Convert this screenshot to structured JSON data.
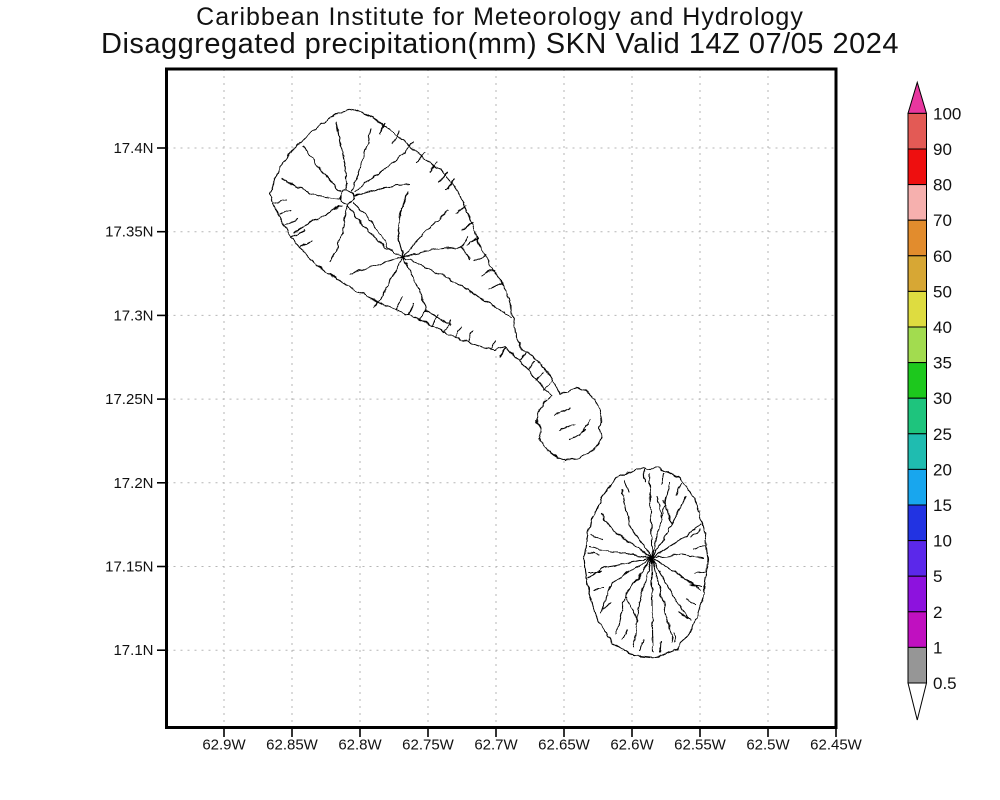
{
  "header": {
    "title": "Caribbean Institute for Meteorology and Hydrology",
    "subtitle": "Disaggregated precipitation(mm) SKN Valid 14Z 07/05 2024"
  },
  "chart_data": {
    "type": "map",
    "region_code": "SKN",
    "variable": "Disaggregated precipitation(mm)",
    "valid_time": "14Z 07/05 2024",
    "lat_ticks": [
      "17.4N",
      "17.35N",
      "17.3N",
      "17.25N",
      "17.2N",
      "17.15N",
      "17.1N"
    ],
    "lon_ticks": [
      "62.9W",
      "62.85W",
      "62.8W",
      "62.75W",
      "62.7W",
      "62.65W",
      "62.6W",
      "62.55W",
      "62.5W",
      "62.45W"
    ],
    "grid": "dashed gray gridlines at every tick",
    "colorbar": {
      "orientation": "vertical",
      "position": "right",
      "tick_labels": [
        "100",
        "90",
        "80",
        "70",
        "60",
        "50",
        "40",
        "35",
        "30",
        "25",
        "20",
        "15",
        "10",
        "5",
        "2",
        "1",
        "0.5"
      ],
      "segment_colors_top_to_bottom": [
        "#e35a55",
        "#ee0f0f",
        "#f6b0ae",
        "#e28c2d",
        "#d7a734",
        "#dedc40",
        "#a2dc4f",
        "#1dc81d",
        "#1ec47d",
        "#1fbcb0",
        "#18a6ee",
        "#2233e2",
        "#5b28ea",
        "#8d12de",
        "#c010c0",
        "#969696"
      ],
      "over_arrow_color": "#e8379f",
      "under_arrow_color": "#ffffff",
      "outline_color": "#000000"
    },
    "map_content": "two island watershed outlines drawn in black line art on white"
  }
}
